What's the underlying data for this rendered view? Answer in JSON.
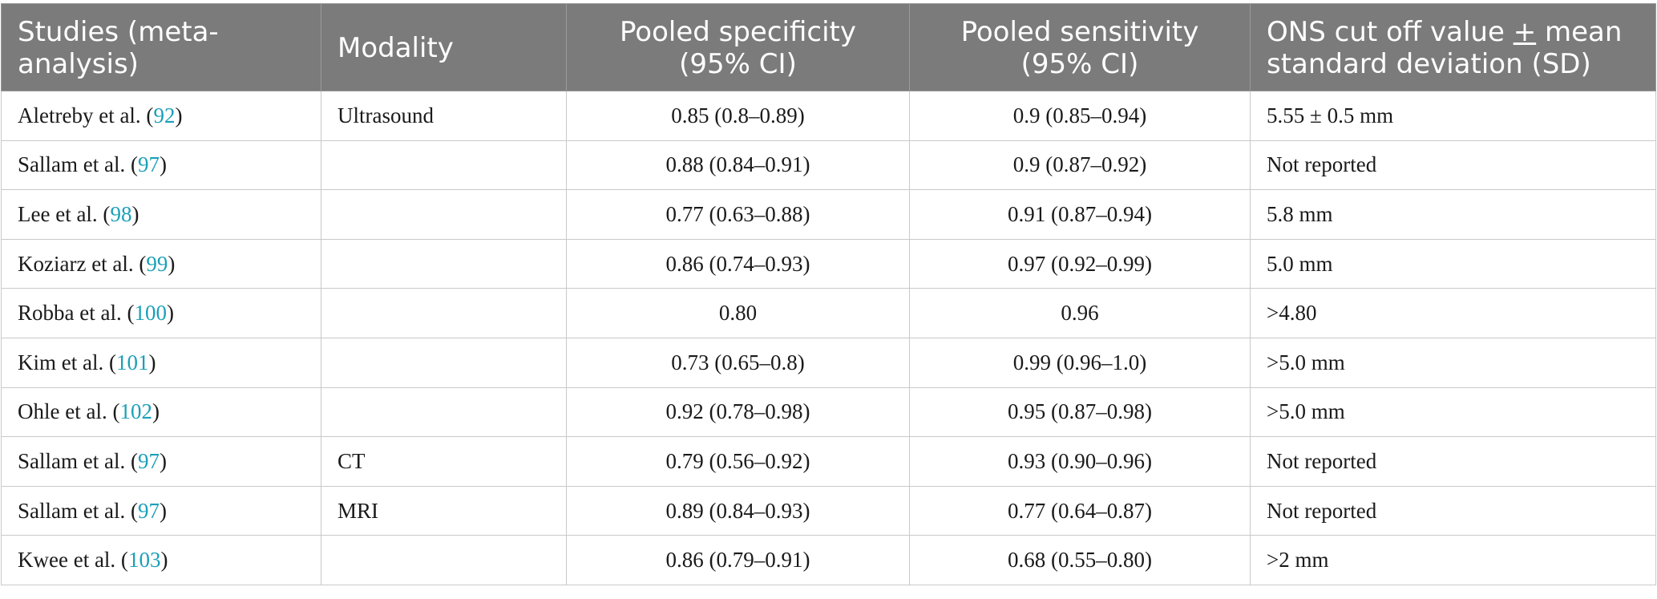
{
  "colors": {
    "header_background": "#7a7b7a",
    "header_text": "#ffffff",
    "reference_link": "#1aa0b8",
    "grid_lines": "#c9c9c9"
  },
  "table": {
    "headers": {
      "study": "Studies (meta-analysis)",
      "modality": "Modality",
      "specificity_line1": "Pooled specificity",
      "specificity_line2": "(95% CI)",
      "sensitivity_line1": "Pooled sensitivity",
      "sensitivity_line2": "(95% CI)",
      "cutoff_part1": "ONS cut off value ",
      "cutoff_pm": "+",
      "cutoff_part2": " mean standard deviation (SD)"
    },
    "rows": [
      {
        "author": "Aletreby et al. (",
        "ref": "92",
        "close": ")",
        "modality": "Ultrasound",
        "specificity": "0.85 (0.8–0.89)",
        "sensitivity": "0.9 (0.85–0.94)",
        "cutoff": "5.55 ± 0.5 mm"
      },
      {
        "author": "Sallam et al. (",
        "ref": "97",
        "close": ")",
        "modality": "",
        "specificity": "0.88 (0.84–0.91)",
        "sensitivity": "0.9 (0.87–0.92)",
        "cutoff": "Not reported"
      },
      {
        "author": "Lee et al. (",
        "ref": "98",
        "close": ")",
        "modality": "",
        "specificity": "0.77 (0.63–0.88)",
        "sensitivity": "0.91 (0.87–0.94)",
        "cutoff": "5.8 mm"
      },
      {
        "author": "Koziarz et al. (",
        "ref": "99",
        "close": ")",
        "modality": "",
        "specificity": "0.86 (0.74–0.93)",
        "sensitivity": "0.97 (0.92–0.99)",
        "cutoff": "5.0 mm"
      },
      {
        "author": "Robba et al. (",
        "ref": "100",
        "close": ")",
        "modality": "",
        "specificity": "0.80",
        "sensitivity": "0.96",
        "cutoff": ">4.80"
      },
      {
        "author": "Kim et al. (",
        "ref": "101",
        "close": ")",
        "modality": "",
        "specificity": "0.73 (0.65–0.8)",
        "sensitivity": "0.99 (0.96–1.0)",
        "cutoff": ">5.0 mm"
      },
      {
        "author": "Ohle et al. (",
        "ref": "102",
        "close": ")",
        "modality": "",
        "specificity": "0.92 (0.78–0.98)",
        "sensitivity": "0.95 (0.87–0.98)",
        "cutoff": ">5.0 mm"
      },
      {
        "author": "Sallam et al. (",
        "ref": "97",
        "close": ")",
        "modality": "CT",
        "specificity": "0.79 (0.56–0.92)",
        "sensitivity": "0.93 (0.90–0.96)",
        "cutoff": "Not reported"
      },
      {
        "author": "Sallam et al. (",
        "ref": "97",
        "close": ")",
        "modality": "MRI",
        "specificity": "0.89 (0.84–0.93)",
        "sensitivity": "0.77 (0.64–0.87)",
        "cutoff": "Not reported"
      },
      {
        "author": "Kwee et al. (",
        "ref": "103",
        "close": ")",
        "modality": "",
        "specificity": "0.86 (0.79–0.91)",
        "sensitivity": "0.68 (0.55–0.80)",
        "cutoff": ">2 mm"
      }
    ]
  }
}
